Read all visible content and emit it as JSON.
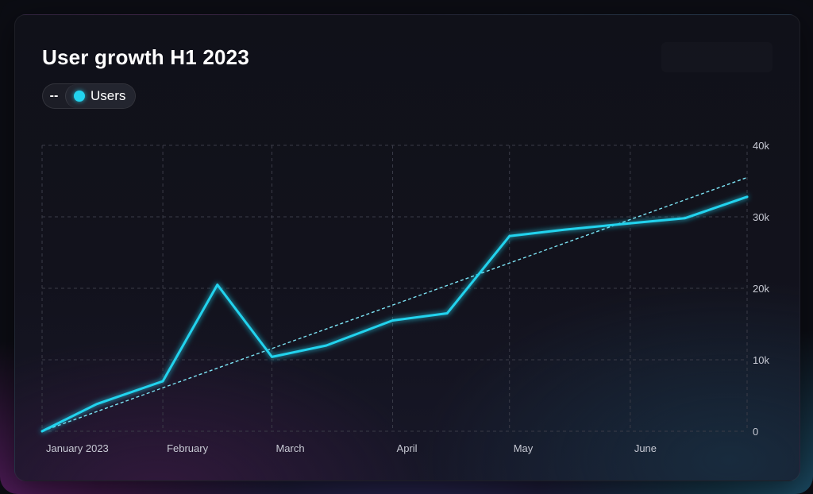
{
  "colors": {
    "series": "#22d3ee",
    "trend": "#7de4f5",
    "grid": "#3b3c48"
  },
  "legend": {
    "toggle_label": "--",
    "series_label": "Users"
  },
  "chart_data": {
    "type": "line",
    "title": "User growth H1 2023",
    "x_tick_labels": [
      "January 2023",
      "February",
      "March",
      "April",
      "May",
      "June"
    ],
    "y_tick_labels": [
      "0",
      "10k",
      "20k",
      "30k",
      "40k"
    ],
    "ylim": [
      0,
      40000
    ],
    "y_axis_side": "right",
    "grid": true,
    "legend_position": "top-left",
    "series": [
      {
        "name": "Users",
        "x": [
          "2023-01-01",
          "2023-01-15",
          "2023-02-01",
          "2023-02-15",
          "2023-03-01",
          "2023-03-15",
          "2023-04-01",
          "2023-04-15",
          "2023-05-01",
          "2023-05-15",
          "2023-06-01",
          "2023-06-15",
          "2023-07-01"
        ],
        "values": [
          0,
          3800,
          7000,
          20500,
          10400,
          12000,
          15500,
          16500,
          27300,
          28200,
          29100,
          29800,
          32800
        ]
      }
    ],
    "trendline": {
      "style": "dashed",
      "start": {
        "x": "2023-01-01",
        "y": 0
      },
      "end": {
        "x": "2023-07-01",
        "y": 35500
      }
    }
  }
}
